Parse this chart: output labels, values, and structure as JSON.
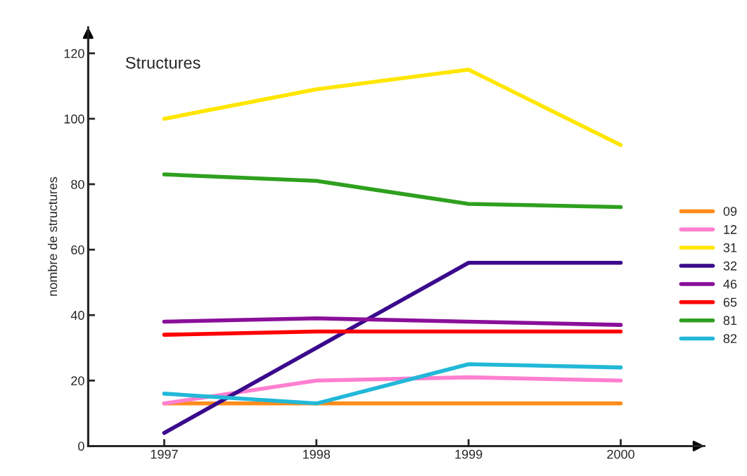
{
  "chart_data": {
    "type": "line",
    "title": "Structures",
    "ylabel": "nombre de structures",
    "categories": [
      "1997",
      "1998",
      "1999",
      "2000"
    ],
    "series": [
      {
        "name": "09",
        "color": "#ff8c1a",
        "values": [
          13,
          13,
          13,
          13
        ]
      },
      {
        "name": "12",
        "color": "#ff7fd0",
        "values": [
          13,
          20,
          21,
          20
        ]
      },
      {
        "name": "31",
        "color": "#ffe600",
        "values": [
          100,
          109,
          115,
          92
        ]
      },
      {
        "name": "32",
        "color": "#3a0a8c",
        "values": [
          4,
          30,
          56,
          56
        ]
      },
      {
        "name": "46",
        "color": "#8a0f9a",
        "values": [
          38,
          39,
          38,
          37
        ]
      },
      {
        "name": "65",
        "color": "#ff0000",
        "values": [
          34,
          35,
          35,
          35
        ]
      },
      {
        "name": "81",
        "color": "#2ea01e",
        "values": [
          83,
          81,
          74,
          73
        ]
      },
      {
        "name": "82",
        "color": "#22b8d8",
        "values": [
          16,
          13,
          25,
          24
        ]
      }
    ],
    "ylim": [
      0,
      128
    ],
    "yticks": [
      0,
      20,
      40,
      60,
      80,
      100,
      120
    ],
    "legend": "right",
    "grid": false,
    "line_style": "solid",
    "marker": "none"
  }
}
